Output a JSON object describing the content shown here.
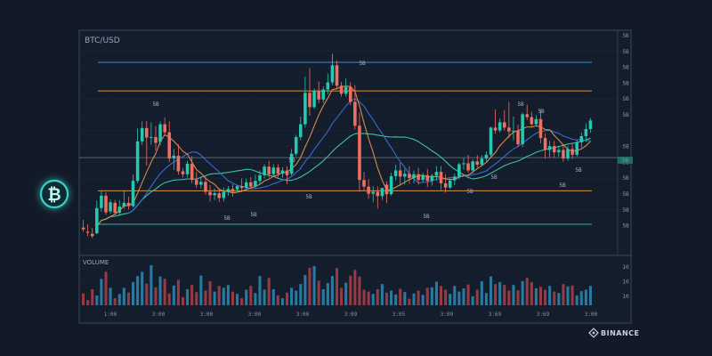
{
  "chart_data": {
    "type": "candlestick",
    "title": "BTC/USD",
    "volume_label": "VOLUME",
    "brand": "BINANCE",
    "icon": "bitcoin-icon",
    "colors": {
      "background": "#121a29",
      "up": "#27c8b0",
      "down": "#ef6f61",
      "ma_fast": "#e2904a",
      "ma_mid": "#3d6fd6",
      "ma_slow": "#3ec9a9",
      "resistance_blue": "#3a87c9",
      "level_orange": "#c98a45",
      "support_teal": "#35a897",
      "volume_up": "#2a7fa6",
      "volume_down": "#9e3c46",
      "bitcoin_icon": "#3ad0c8"
    },
    "price_axis_ticks": [
      "5B",
      "5B",
      "5B",
      "5B",
      "5B",
      "5B",
      "5B",
      "5B",
      "5B",
      "5B",
      "5B",
      "5B",
      "5B"
    ],
    "volume_axis_ticks": [
      "10",
      "10",
      "10"
    ],
    "x_axis_ticks": [
      "1:00",
      "3:00",
      "3:00",
      "3:00",
      "3:00",
      "3:09",
      "3:05",
      "3:09",
      "3:69",
      "3:69",
      "3:00"
    ],
    "annotations": [
      "5B",
      "5B",
      "5B",
      "5B",
      "5B",
      "5B",
      "5B",
      "5B",
      "5B",
      "5B",
      "5B",
      "5B",
      "5B"
    ],
    "levels": [
      {
        "kind": "resistance",
        "value": 94,
        "color": "#3a87c9"
      },
      {
        "kind": "level",
        "value": 88,
        "color": "#c98a45"
      },
      {
        "kind": "level",
        "value": 74,
        "color": "#8894a8"
      },
      {
        "kind": "level",
        "value": 67,
        "color": "#c98a45"
      },
      {
        "kind": "support",
        "value": 60,
        "color": "#35a897"
      }
    ],
    "candles": [
      [
        59.3,
        60.9,
        58.9,
        58.4
      ],
      [
        58.4,
        60,
        58.2,
        57.5
      ],
      [
        58,
        59.2,
        57.5,
        57.1
      ],
      [
        58.1,
        65,
        63.4,
        57.9
      ],
      [
        63.4,
        67,
        66,
        62.6
      ],
      [
        66,
        66.7,
        62.5,
        62
      ],
      [
        62.7,
        65.2,
        64.6,
        62.2
      ],
      [
        64.5,
        65.1,
        62.4,
        62
      ],
      [
        62.4,
        65,
        63.7,
        61.9
      ],
      [
        63.7,
        67,
        64.5,
        63.2
      ],
      [
        64.5,
        65.8,
        63.8,
        63.1
      ],
      [
        63.8,
        70.4,
        69.1,
        63.5
      ],
      [
        69.1,
        80.1,
        77.4,
        68.6
      ],
      [
        77.4,
        81.6,
        80.2,
        76.6
      ],
      [
        80.2,
        81.7,
        78.2,
        72.3
      ],
      [
        78.2,
        81.4,
        78.3,
        76.7
      ],
      [
        78.3,
        80.6,
        77.1,
        75.5
      ],
      [
        77.3,
        81.6,
        81,
        76.6
      ],
      [
        81,
        82.4,
        79.3,
        78.6
      ],
      [
        79.3,
        81.6,
        73.8,
        73.1
      ],
      [
        73.8,
        75.8,
        74.4,
        71.4
      ],
      [
        74.4,
        76.8,
        71.1,
        70.4
      ],
      [
        71.1,
        71.8,
        70.5,
        69.8
      ],
      [
        70.5,
        73.3,
        72.7,
        69.8
      ],
      [
        72.7,
        74.3,
        69.3,
        68.6
      ],
      [
        69.3,
        71,
        68.3,
        67.6
      ],
      [
        68.3,
        69.8,
        68.9,
        67.5
      ],
      [
        68.9,
        70,
        66.8,
        66.2
      ],
      [
        66.8,
        68.2,
        66.1,
        64.8
      ],
      [
        66.1,
        67.5,
        66.5,
        65.1
      ],
      [
        66.5,
        67.5,
        65.5,
        64.7
      ],
      [
        65.5,
        67.7,
        66.8,
        64.8
      ],
      [
        66.8,
        68,
        67.4,
        66
      ],
      [
        67.4,
        68.4,
        66.8,
        65.8
      ],
      [
        67.3,
        68.2,
        68,
        66.6
      ],
      [
        68,
        69.6,
        67.6,
        66.7
      ],
      [
        67.6,
        69.6,
        68.8,
        67.3
      ],
      [
        68.8,
        69.9,
        67.9,
        67.4
      ],
      [
        67.9,
        70.4,
        69.1,
        67.5
      ],
      [
        69.1,
        71.3,
        70.3,
        68.5
      ],
      [
        70.3,
        72.6,
        72.1,
        69.6
      ],
      [
        72.1,
        73.3,
        70.5,
        69.8
      ],
      [
        70.5,
        72.6,
        71.9,
        70
      ],
      [
        71.9,
        72.6,
        70.6,
        69.9
      ],
      [
        70.6,
        72,
        71.3,
        69.8
      ],
      [
        71.3,
        72.2,
        70.3,
        68.4
      ],
      [
        70.6,
        75.8,
        74.8,
        70.2
      ],
      [
        74.8,
        78.8,
        78.3,
        74.3
      ],
      [
        78.3,
        82.6,
        81,
        77.6
      ],
      [
        81,
        91,
        87.6,
        80.3
      ],
      [
        87.6,
        92.8,
        84.6,
        82.8
      ],
      [
        84.6,
        88.5,
        88,
        84.2
      ],
      [
        88,
        90,
        86.2,
        85.4
      ],
      [
        86.2,
        88.9,
        88.3,
        85.5
      ],
      [
        88.3,
        91.7,
        89.8,
        87.3
      ],
      [
        89.8,
        95.8,
        93.4,
        89.2
      ],
      [
        93.4,
        94.4,
        89.1,
        88.6
      ],
      [
        89.1,
        89.9,
        87.4,
        86.8
      ],
      [
        87.4,
        90.6,
        88.8,
        86.8
      ],
      [
        88.8,
        89.8,
        85.7,
        85
      ],
      [
        85.7,
        89.2,
        80.7,
        79.9
      ],
      [
        80.7,
        83.4,
        69.3,
        66.8
      ],
      [
        69.3,
        71,
        67.9,
        66.9
      ],
      [
        67.9,
        69.5,
        66.4,
        65.3
      ],
      [
        66.4,
        68,
        66.8,
        64.6
      ],
      [
        66.8,
        67.9,
        65.9,
        63.3
      ],
      [
        65.9,
        67.3,
        67.6,
        65.1
      ],
      [
        68.3,
        69,
        66.3,
        64.4
      ],
      [
        66.3,
        70.8,
        70.1,
        66
      ],
      [
        70.1,
        72.5,
        71.3,
        69.2
      ],
      [
        71.3,
        72.9,
        70,
        68.1
      ],
      [
        70,
        71.7,
        70.6,
        68.3
      ],
      [
        70.6,
        72.2,
        69.7,
        68.5
      ],
      [
        69.7,
        71.3,
        70.5,
        68.6
      ],
      [
        70.5,
        71.8,
        69.3,
        68.3
      ],
      [
        69.3,
        70.8,
        70.3,
        68.8
      ],
      [
        70.3,
        71.6,
        69.1,
        67.8
      ],
      [
        69.1,
        70.6,
        70.2,
        68.1
      ],
      [
        70.2,
        72.2,
        71,
        69.2
      ],
      [
        71,
        72.2,
        68.6,
        67.2
      ],
      [
        68.6,
        70.5,
        67.7,
        66.6
      ],
      [
        67.7,
        69.6,
        69.2,
        67.4
      ],
      [
        69.2,
        70.6,
        70,
        68.2
      ],
      [
        70,
        72.9,
        72.6,
        69.4
      ],
      [
        72.6,
        73.9,
        72.8,
        71.5
      ],
      [
        72.8,
        74.6,
        71.3,
        70.8
      ],
      [
        71.3,
        73.6,
        73.2,
        70.7
      ],
      [
        73.2,
        74.5,
        72.5,
        71.9
      ],
      [
        72.5,
        74.5,
        73.8,
        72.2
      ],
      [
        73.8,
        75.3,
        74.6,
        73.2
      ],
      [
        74.6,
        80.5,
        80.3,
        74.1
      ],
      [
        80.3,
        84.1,
        79.7,
        79
      ],
      [
        79.7,
        82.2,
        81.4,
        79.3
      ],
      [
        81.4,
        84,
        80.3,
        79.7
      ],
      [
        80.3,
        85.7,
        79.5,
        78.1
      ],
      [
        79.5,
        82.6,
        79.6,
        77.6
      ],
      [
        79.6,
        80.9,
        76.8,
        76.3
      ],
      [
        76.8,
        83.5,
        83.1,
        76.2
      ],
      [
        83.1,
        85.1,
        82.5,
        81.9
      ],
      [
        82.5,
        83.6,
        81,
        80.6
      ],
      [
        81,
        82.9,
        82.1,
        80.6
      ],
      [
        82.1,
        84.1,
        78.1,
        77
      ],
      [
        78.1,
        79.1,
        75.6,
        73.8
      ],
      [
        75.6,
        77.5,
        76.4,
        74
      ],
      [
        76.4,
        77.5,
        75.1,
        74.1
      ],
      [
        75.1,
        76.3,
        75.6,
        74.2
      ],
      [
        75.6,
        76.4,
        73.8,
        73.1
      ],
      [
        73.8,
        76.4,
        75.8,
        73.3
      ],
      [
        75.8,
        77.1,
        74.6,
        73.7
      ],
      [
        74.6,
        77.7,
        77.2,
        74.2
      ],
      [
        77.2,
        79.3,
        78.5,
        76.1
      ],
      [
        78.5,
        81.2,
        80,
        77.3
      ],
      [
        80,
        82.3,
        81.8,
        79.2
      ]
    ],
    "volume": [
      25,
      11,
      34,
      21,
      56,
      71,
      37,
      15,
      24,
      37,
      27,
      49,
      62,
      71,
      46,
      85,
      38,
      61,
      56,
      25,
      42,
      54,
      17,
      34,
      43,
      28,
      63,
      31,
      51,
      29,
      41,
      37,
      43,
      29,
      24,
      15,
      33,
      41,
      26,
      62,
      33,
      58,
      34,
      21,
      15,
      27,
      37,
      31,
      45,
      64,
      79,
      83,
      52,
      34,
      47,
      62,
      79,
      37,
      48,
      63,
      75,
      61,
      33,
      29,
      24,
      34,
      45,
      27,
      31,
      23,
      35,
      28,
      14,
      25,
      31,
      22,
      37,
      38,
      50,
      41,
      33,
      24,
      41,
      29,
      36,
      44,
      19,
      33,
      51,
      26,
      61,
      45,
      49,
      43,
      31,
      43,
      32,
      51,
      58,
      49,
      36,
      39,
      33,
      41,
      29,
      26,
      45,
      40,
      42,
      21,
      30,
      33,
      41
    ],
    "price_range": [
      54,
      100
    ],
    "volume_range": [
      0,
      100
    ]
  }
}
